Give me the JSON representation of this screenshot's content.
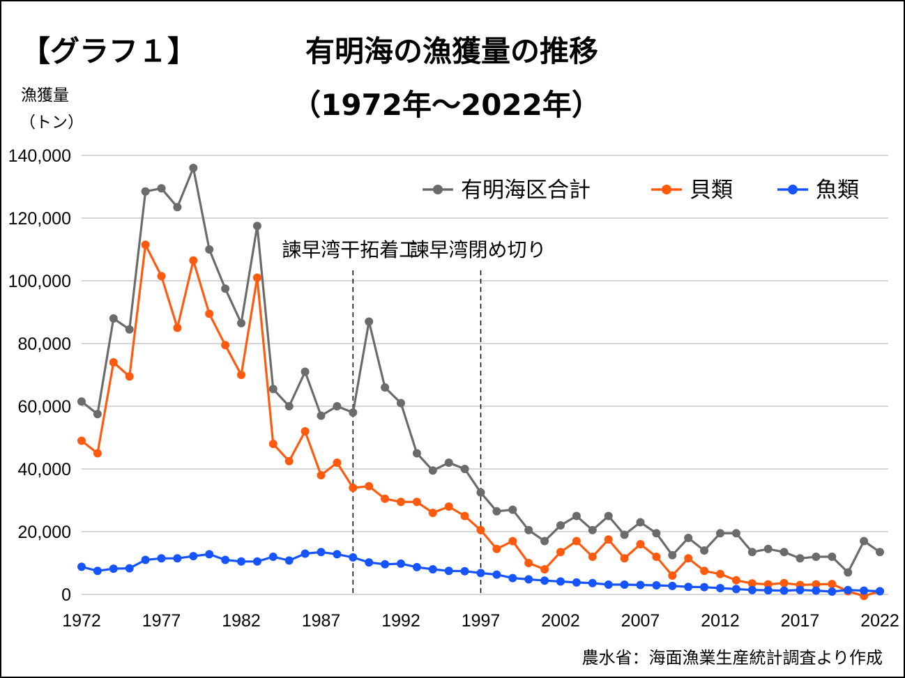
{
  "chart_data": {
    "type": "line",
    "label": "【グラフ１】",
    "title": "有明海の漁獲量の推移",
    "subtitle": "（1972年～2022年）",
    "ylabel_line1": "漁獲量",
    "ylabel_line2": "（トン）",
    "ylim": [
      0,
      140000
    ],
    "ytick_values": [
      0,
      20000,
      40000,
      60000,
      80000,
      100000,
      120000,
      140000
    ],
    "ytick_labels": [
      "0",
      "20,000",
      "40,000",
      "60,000",
      "80,000",
      "100,000",
      "120,000",
      "140,000"
    ],
    "xlim": [
      1972,
      2022
    ],
    "xtick_labels": [
      "1972",
      "1977",
      "1982",
      "1987",
      "1992",
      "1997",
      "2002",
      "2007",
      "2012",
      "2017",
      "2022"
    ],
    "x": [
      1972,
      1973,
      1974,
      1975,
      1976,
      1977,
      1978,
      1979,
      1980,
      1981,
      1982,
      1983,
      1984,
      1985,
      1986,
      1987,
      1988,
      1989,
      1990,
      1991,
      1992,
      1993,
      1994,
      1995,
      1996,
      1997,
      1998,
      1999,
      2000,
      2001,
      2002,
      2003,
      2004,
      2005,
      2006,
      2007,
      2008,
      2009,
      2010,
      2011,
      2012,
      2013,
      2014,
      2015,
      2016,
      2017,
      2018,
      2019,
      2020,
      2021,
      2022
    ],
    "series": [
      {
        "name": "有明海区合計",
        "color": "#6b6b6b",
        "values": [
          61500,
          57500,
          88000,
          84500,
          128500,
          129500,
          123500,
          136000,
          110000,
          97500,
          86500,
          117500,
          65500,
          60000,
          71000,
          57000,
          60000,
          58000,
          87000,
          66000,
          61000,
          45000,
          39500,
          42000,
          40000,
          32500,
          26500,
          27000,
          20500,
          17000,
          22000,
          25000,
          20500,
          25000,
          19000,
          23000,
          19500,
          12500,
          18000,
          14000,
          19500,
          19500,
          13500,
          14500,
          13500,
          11500,
          12000,
          12000,
          7000,
          17000,
          13500
        ]
      },
      {
        "name": "貝類",
        "color": "#ff5a0e",
        "values": [
          49000,
          45000,
          74000,
          69500,
          111500,
          101500,
          85000,
          106500,
          89500,
          79500,
          70000,
          101000,
          48000,
          42500,
          52000,
          38000,
          42000,
          34000,
          34500,
          30500,
          29500,
          29500,
          26000,
          28000,
          25000,
          20500,
          14500,
          17000,
          10000,
          8000,
          13500,
          17000,
          12000,
          17500,
          11500,
          16000,
          12000,
          6000,
          11500,
          7500,
          6500,
          4500,
          3500,
          3200,
          3600,
          3000,
          3200,
          3300,
          1000,
          -500,
          1000
        ]
      },
      {
        "name": "魚類",
        "color": "#1554ff",
        "values": [
          8800,
          7500,
          8200,
          8300,
          11000,
          11500,
          11500,
          12200,
          12800,
          11000,
          10500,
          10500,
          12000,
          10800,
          13000,
          13500,
          12800,
          11800,
          10200,
          9600,
          9800,
          8700,
          8000,
          7500,
          7400,
          6800,
          6300,
          5200,
          4800,
          4400,
          4100,
          3800,
          3600,
          3100,
          3100,
          3000,
          2900,
          2700,
          2400,
          2300,
          2000,
          1700,
          1400,
          1300,
          1200,
          1400,
          1200,
          900,
          1400,
          1200,
          1000
        ]
      }
    ],
    "annotations": [
      {
        "year": 1989,
        "text": "諫早湾干拓着工"
      },
      {
        "year": 1997,
        "text": "諫早湾閉め切り"
      }
    ],
    "source": "農水省：海面漁業生産統計調査より作成",
    "grid": true,
    "legend_position": "top-right"
  }
}
